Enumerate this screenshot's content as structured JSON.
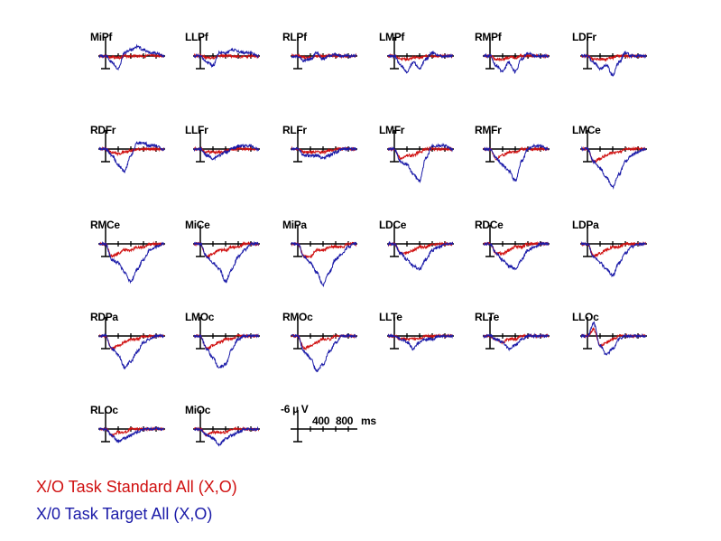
{
  "chart_data": {
    "type": "line",
    "layout": "grid of electrode panels",
    "x_unit": "ms",
    "y_unit": "µV",
    "y_orientation": "negative up",
    "times": [
      -100,
      0,
      100,
      200,
      300,
      400,
      500,
      600,
      700,
      800,
      900
    ],
    "scale_bar": {
      "y_label": "-6 µ V",
      "x_tick_labels": [
        "400",
        "800"
      ],
      "x_unit_label": "ms",
      "y_top": -6,
      "y_bottom": 4,
      "x_ticks": [
        200,
        400,
        600,
        800
      ]
    },
    "colors": {
      "standard": "#d01010",
      "target": "#1a1aa8",
      "axis": "#000000"
    },
    "legend": [
      {
        "name": "X/O Task Standard All (X,O)",
        "color": "#d01010"
      },
      {
        "name": "X/0 Task Target All (X,O)",
        "color": "#1a1aa8"
      }
    ],
    "panels": [
      {
        "label": "MiPf",
        "standard": [
          0,
          0,
          0.5,
          0.5,
          0,
          0,
          0,
          0,
          0,
          0,
          0
        ],
        "target": [
          0,
          0,
          2,
          4,
          -1,
          -2,
          -3,
          -2,
          -1,
          -1,
          0
        ]
      },
      {
        "label": "LLPf",
        "standard": [
          0,
          0,
          0.5,
          0.5,
          0,
          0,
          0,
          0.3,
          0.3,
          0,
          0
        ],
        "target": [
          0,
          0,
          2,
          3,
          -1,
          -1,
          -2,
          -1.5,
          -1,
          -1,
          0
        ]
      },
      {
        "label": "RLPf",
        "standard": [
          0,
          0,
          0.5,
          0.5,
          0,
          0,
          0,
          0,
          0,
          0,
          0
        ],
        "target": [
          0,
          0,
          1.5,
          1,
          -1,
          1,
          0,
          -0.5,
          0,
          0,
          0
        ]
      },
      {
        "label": "LMPf",
        "standard": [
          0,
          0,
          1,
          1,
          0.5,
          0.5,
          0,
          0,
          0,
          0,
          0
        ],
        "target": [
          0,
          0,
          3,
          5,
          2,
          4,
          1,
          -1,
          0,
          0,
          0
        ]
      },
      {
        "label": "RMPf",
        "standard": [
          0,
          0,
          1,
          1,
          0.5,
          0.5,
          0,
          0,
          0,
          0,
          0
        ],
        "target": [
          0,
          0,
          3,
          5,
          2,
          5,
          1,
          -1,
          0,
          0,
          0
        ]
      },
      {
        "label": "LDFr",
        "standard": [
          0,
          0,
          1,
          1,
          1,
          0.5,
          0,
          0,
          0,
          0,
          0
        ],
        "target": [
          0,
          0,
          2,
          4,
          3,
          6,
          2,
          -1,
          0,
          0,
          0
        ]
      },
      {
        "label": "RDFr",
        "standard": [
          0,
          0,
          1,
          1.5,
          1,
          0.5,
          0,
          0,
          0,
          0,
          0
        ],
        "target": [
          0,
          0,
          2,
          5,
          7,
          2,
          -2,
          -2,
          -1,
          -1,
          0
        ]
      },
      {
        "label": "LLFr",
        "standard": [
          0,
          0,
          1,
          1,
          1,
          0.5,
          0,
          0,
          0,
          0,
          0
        ],
        "target": [
          0,
          0,
          2,
          3,
          2,
          1,
          0,
          -1,
          -1,
          -1,
          0
        ]
      },
      {
        "label": "RLFr",
        "standard": [
          0,
          0,
          1,
          1,
          1,
          1,
          0.5,
          0,
          0,
          0,
          0
        ],
        "target": [
          0,
          0,
          2,
          2,
          2,
          3,
          2,
          1,
          0,
          0,
          0
        ]
      },
      {
        "label": "LMFr",
        "standard": [
          0,
          0,
          3,
          2,
          2,
          1,
          0,
          0,
          0,
          0,
          0
        ],
        "target": [
          0,
          0,
          4,
          5,
          8,
          10,
          3,
          -1,
          -1,
          -1,
          0
        ]
      },
      {
        "label": "RMFr",
        "standard": [
          0,
          0,
          3,
          2,
          1,
          1,
          0,
          0,
          0,
          0,
          0
        ],
        "target": [
          0,
          0,
          3,
          5,
          7,
          10,
          4,
          0,
          -1,
          -1,
          0
        ]
      },
      {
        "label": "LMCe",
        "standard": [
          0,
          0,
          4,
          3,
          2,
          1,
          1,
          0,
          0,
          0,
          0
        ],
        "target": [
          0,
          0,
          4,
          6,
          9,
          12,
          8,
          4,
          2,
          1,
          0
        ]
      },
      {
        "label": "RMCe",
        "standard": [
          0,
          0,
          4,
          3,
          2,
          2,
          1,
          1,
          0,
          0,
          0
        ],
        "target": [
          0,
          0,
          5,
          6,
          9,
          12,
          8,
          5,
          2,
          1,
          0
        ]
      },
      {
        "label": "MiCe",
        "standard": [
          0,
          0,
          4,
          3,
          2,
          2,
          1,
          1,
          0,
          0,
          0
        ],
        "target": [
          0,
          0,
          4,
          6,
          8,
          12,
          8,
          4,
          2,
          0,
          0
        ]
      },
      {
        "label": "MiPa",
        "standard": [
          0,
          0,
          4,
          4,
          2,
          2,
          1,
          1,
          1,
          0,
          0
        ],
        "target": [
          0,
          0,
          4,
          6,
          9,
          13,
          9,
          5,
          3,
          1,
          0
        ]
      },
      {
        "label": "LDCe",
        "standard": [
          0,
          0,
          3,
          3,
          2,
          1,
          1,
          0,
          0,
          0,
          0
        ],
        "target": [
          0,
          0,
          3,
          5,
          7,
          8,
          5,
          2,
          1,
          0,
          0
        ]
      },
      {
        "label": "RDCe",
        "standard": [
          0,
          0,
          3,
          3,
          2,
          1,
          1,
          0,
          0,
          0,
          0
        ],
        "target": [
          0,
          0,
          3,
          5,
          7,
          8,
          5,
          2,
          1,
          0,
          0
        ]
      },
      {
        "label": "LDPa",
        "standard": [
          0,
          0,
          4,
          3,
          2,
          1,
          1,
          0,
          0,
          0,
          0
        ],
        "target": [
          0,
          0,
          4,
          6,
          8,
          10,
          6,
          3,
          1,
          0,
          0
        ]
      },
      {
        "label": "RDPa",
        "standard": [
          0,
          0,
          4,
          3,
          2,
          1,
          1,
          0,
          0,
          0,
          0
        ],
        "target": [
          0,
          0,
          4,
          6,
          10,
          8,
          5,
          2,
          1,
          0,
          0
        ]
      },
      {
        "label": "LMOc",
        "standard": [
          0,
          0,
          4,
          3,
          2,
          1,
          1,
          0,
          0,
          0,
          0
        ],
        "target": [
          0,
          0,
          4,
          7,
          10,
          9,
          4,
          1,
          0,
          0,
          0
        ]
      },
      {
        "label": "RMOc",
        "standard": [
          0,
          0,
          4,
          3,
          2,
          1,
          1,
          0,
          0,
          0,
          0
        ],
        "target": [
          0,
          0,
          5,
          7,
          11,
          9,
          5,
          2,
          0,
          0,
          0
        ]
      },
      {
        "label": "LLTe",
        "standard": [
          0,
          0,
          1,
          1,
          1,
          1,
          0,
          0,
          0,
          0,
          0
        ],
        "target": [
          0,
          0,
          1,
          2,
          4,
          2,
          1,
          1,
          0,
          0,
          0
        ]
      },
      {
        "label": "RLTe",
        "standard": [
          0,
          0,
          1,
          2,
          1,
          1,
          0,
          0,
          0,
          0,
          0
        ],
        "target": [
          0,
          0,
          1,
          2,
          4,
          3,
          1,
          0,
          0,
          0,
          0
        ]
      },
      {
        "label": "LLOc",
        "standard": [
          0,
          0,
          -2,
          3,
          2,
          1,
          0,
          0,
          0,
          0,
          0
        ],
        "target": [
          0,
          0,
          -4,
          3,
          6,
          4,
          1,
          0,
          0,
          0,
          0
        ]
      },
      {
        "label": "RLOc",
        "standard": [
          0,
          0,
          2,
          1,
          1,
          0,
          0,
          0,
          0,
          0,
          0
        ],
        "target": [
          0,
          0,
          2,
          4,
          3,
          2,
          1,
          0,
          0,
          0,
          0
        ]
      },
      {
        "label": "MiOc",
        "standard": [
          0,
          0,
          2,
          1,
          1,
          1,
          0,
          0,
          0,
          0,
          0
        ],
        "target": [
          0,
          0,
          2,
          3,
          5,
          3,
          2,
          1,
          0,
          0,
          0
        ]
      }
    ]
  }
}
